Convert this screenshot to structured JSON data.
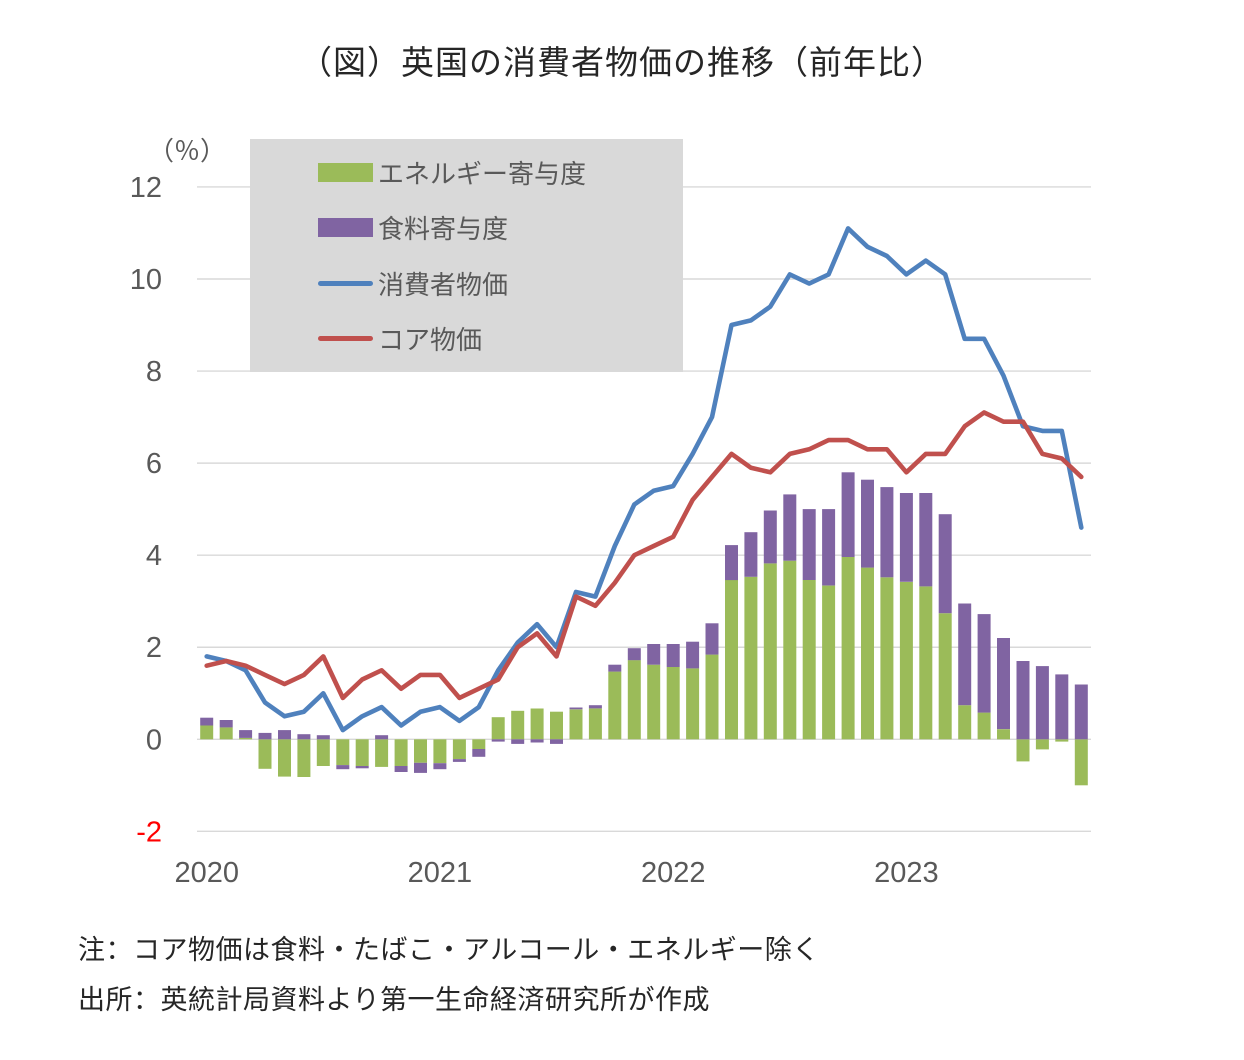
{
  "title": "（図）英国の消費者物価の推移（前年比）",
  "unit_label": "（％）",
  "notes": [
    "注：コア物価は食料・たばこ・アルコール・エネルギー除く",
    "出所：英統計局資料より第一生命経済研究所が作成"
  ],
  "colors": {
    "energy": "#9bbb59",
    "food": "#8064a2",
    "cpi": "#4f81bd",
    "core": "#c0504d",
    "grid": "#d9d9d9",
    "tick_text": "#595959",
    "negative_tick_text": "#ff0000",
    "legend_bg": "#d9d9d9",
    "title_text": "#262626"
  },
  "legend": {
    "items": [
      {
        "label": "エネルギー寄与度",
        "swatch": "bar",
        "series": "energy"
      },
      {
        "label": "食料寄与度",
        "swatch": "bar",
        "series": "food"
      },
      {
        "label": "消費者物価",
        "swatch": "line",
        "series": "cpi"
      },
      {
        "label": "コア物価",
        "swatch": "line",
        "series": "core"
      }
    ]
  },
  "chart_data": {
    "type": "combo-stacked-bar-line",
    "title": "（図）英国の消費者物価の推移（前年比）",
    "ylabel": "（％）",
    "ylim": [
      -2,
      12
    ],
    "yticks": [
      12,
      10,
      8,
      6,
      4,
      2,
      0,
      -2
    ],
    "grid": true,
    "legend_position": "inside-top-left",
    "x": [
      "2020-01",
      "2020-02",
      "2020-03",
      "2020-04",
      "2020-05",
      "2020-06",
      "2020-07",
      "2020-08",
      "2020-09",
      "2020-10",
      "2020-11",
      "2020-12",
      "2021-01",
      "2021-02",
      "2021-03",
      "2021-04",
      "2021-05",
      "2021-06",
      "2021-07",
      "2021-08",
      "2021-09",
      "2021-10",
      "2021-11",
      "2021-12",
      "2022-01",
      "2022-02",
      "2022-03",
      "2022-04",
      "2022-05",
      "2022-06",
      "2022-07",
      "2022-08",
      "2022-09",
      "2022-10",
      "2022-11",
      "2022-12",
      "2023-01",
      "2023-02",
      "2023-03",
      "2023-04",
      "2023-05",
      "2023-06",
      "2023-07",
      "2023-08",
      "2023-09",
      "2023-10"
    ],
    "xticks": [
      {
        "label": "2020",
        "index": 0
      },
      {
        "label": "2021",
        "index": 12
      },
      {
        "label": "2022",
        "index": 24
      },
      {
        "label": "2023",
        "index": 36
      }
    ],
    "series": [
      {
        "name": "エネルギー寄与度",
        "type": "bar",
        "stack": "contrib",
        "color_key": "energy",
        "values": [
          0.3,
          0.26,
          0.03,
          -0.64,
          -0.81,
          -0.82,
          -0.58,
          -0.56,
          -0.58,
          -0.6,
          -0.58,
          -0.51,
          -0.52,
          -0.43,
          -0.21,
          0.48,
          0.62,
          0.67,
          0.6,
          0.65,
          0.67,
          1.47,
          1.72,
          1.62,
          1.57,
          1.54,
          1.84,
          3.46,
          3.53,
          3.82,
          3.88,
          3.46,
          3.34,
          3.96,
          3.73,
          3.52,
          3.42,
          3.32,
          2.74,
          0.74,
          0.58,
          0.22,
          -0.48,
          -0.22,
          -0.05,
          -1.0
        ]
      },
      {
        "name": "食料寄与度",
        "type": "bar",
        "stack": "contrib",
        "color_key": "food",
        "values": [
          0.17,
          0.16,
          0.17,
          0.14,
          0.2,
          0.11,
          0.09,
          -0.09,
          -0.05,
          0.09,
          -0.13,
          -0.22,
          -0.13,
          -0.06,
          -0.17,
          -0.05,
          -0.1,
          -0.07,
          -0.1,
          0.04,
          0.07,
          0.15,
          0.26,
          0.45,
          0.5,
          0.58,
          0.68,
          0.76,
          0.97,
          1.15,
          1.44,
          1.54,
          1.66,
          1.84,
          1.91,
          1.96,
          1.93,
          2.03,
          2.15,
          2.21,
          2.14,
          1.98,
          1.7,
          1.59,
          1.41,
          1.19
        ]
      },
      {
        "name": "消費者物価",
        "type": "line",
        "color_key": "cpi",
        "values": [
          1.8,
          1.7,
          1.5,
          0.8,
          0.5,
          0.6,
          1.0,
          0.2,
          0.5,
          0.7,
          0.3,
          0.6,
          0.7,
          0.4,
          0.7,
          1.5,
          2.1,
          2.5,
          2.0,
          3.2,
          3.1,
          4.2,
          5.1,
          5.4,
          5.5,
          6.2,
          7.0,
          9.0,
          9.1,
          9.4,
          10.1,
          9.9,
          10.1,
          11.1,
          10.7,
          10.5,
          10.1,
          10.4,
          10.1,
          8.7,
          8.7,
          7.9,
          6.8,
          6.7,
          6.7,
          4.6
        ]
      },
      {
        "name": "コア物価",
        "type": "line",
        "color_key": "core",
        "values": [
          1.6,
          1.7,
          1.6,
          1.4,
          1.2,
          1.4,
          1.8,
          0.9,
          1.3,
          1.5,
          1.1,
          1.4,
          1.4,
          0.9,
          1.1,
          1.3,
          2.0,
          2.3,
          1.8,
          3.1,
          2.9,
          3.4,
          4.0,
          4.2,
          4.4,
          5.2,
          5.7,
          6.2,
          5.9,
          5.8,
          6.2,
          6.3,
          6.5,
          6.5,
          6.3,
          6.3,
          5.8,
          6.2,
          6.2,
          6.8,
          7.1,
          6.9,
          6.9,
          6.2,
          6.1,
          5.7
        ]
      }
    ]
  }
}
